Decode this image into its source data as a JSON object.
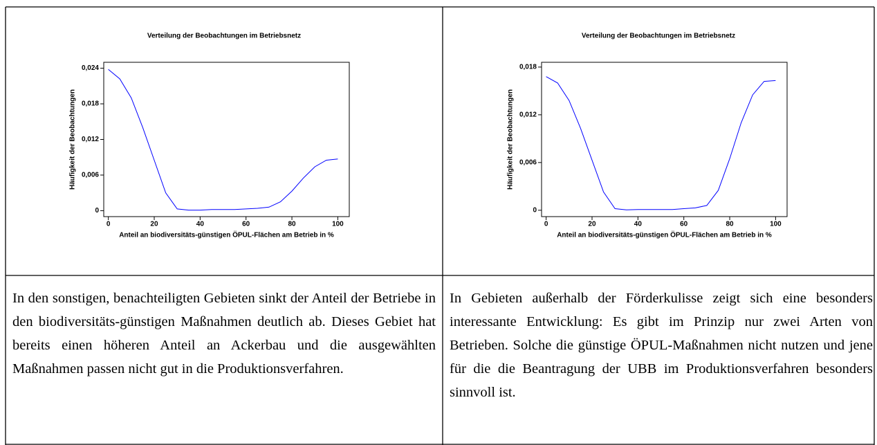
{
  "chart_data": [
    {
      "type": "line",
      "title": "Verteilung der Beobachtungen im Betriebsnetz",
      "x_label": "Anteil an biodiversitäts-günstigen ÖPUL-Flächen am Betrieb in %",
      "y_label": "Häufigkeit der Beobachtungen",
      "x": [
        0,
        5,
        10,
        15,
        20,
        25,
        30,
        35,
        40,
        45,
        50,
        55,
        60,
        65,
        70,
        75,
        80,
        85,
        90,
        95,
        100
      ],
      "series": [
        {
          "color": "#0000ff",
          "values": [
            0.0238,
            0.0222,
            0.019,
            0.014,
            0.0085,
            0.003,
            0.0003,
            0.0001,
            0.0001,
            0.0002,
            0.0002,
            0.0002,
            0.0003,
            0.0004,
            0.0006,
            0.0015,
            0.0033,
            0.0055,
            0.0074,
            0.0085,
            0.0087
          ]
        }
      ],
      "xlim": [
        -2,
        105
      ],
      "xticks": [
        0,
        20,
        40,
        60,
        80,
        100
      ],
      "ylim": [
        -0.001,
        0.025
      ],
      "yticks": [
        0,
        {
          "value": 0.006,
          "label": "0,006"
        },
        {
          "value": 0.012,
          "label": "0,012"
        },
        {
          "value": 0.018,
          "label": "0,018"
        },
        {
          "value": 0.024,
          "label": "0,024"
        }
      ]
    },
    {
      "type": "line",
      "title": "Verteilung der Beobachtungen im Betriebsnetz",
      "x_label": "Anteil an biodiversitäts-günstigen ÖPUL-Flächen am Betrieb in %",
      "y_label": "Häufigkeit der Beobachtungen",
      "x": [
        0,
        5,
        10,
        15,
        20,
        25,
        30,
        35,
        40,
        45,
        50,
        55,
        60,
        65,
        70,
        75,
        80,
        85,
        90,
        95,
        100
      ],
      "series": [
        {
          "color": "#0000ff",
          "values": [
            0.0168,
            0.016,
            0.0138,
            0.0103,
            0.0063,
            0.0023,
            0.0002,
            5e-05,
            0.0001,
            0.0001,
            0.0001,
            0.0001,
            0.0002,
            0.0003,
            0.0006,
            0.0025,
            0.0065,
            0.011,
            0.0145,
            0.0162,
            0.0163
          ]
        }
      ],
      "xlim": [
        -2,
        105
      ],
      "xticks": [
        0,
        20,
        40,
        60,
        80,
        100
      ],
      "ylim": [
        -0.0008,
        0.0186
      ],
      "yticks": [
        0,
        {
          "value": 0.006,
          "label": "0,006"
        },
        {
          "value": 0.012,
          "label": "0,012"
        },
        {
          "value": 0.018,
          "label": "0,018"
        }
      ]
    }
  ],
  "texts": [
    "In den sonstigen, benachteiligten Gebieten sinkt der Anteil der Betriebe in den biodiversitäts-günstigen Maßnahmen deutlich ab. Dieses Gebiet hat bereits einen höheren Anteil an Ackerbau und die ausgewählten Maßnahmen passen nicht gut in die Produktionsverfahren.",
    "In Gebieten außerhalb der Förderkulisse zeigt sich eine besonders interessante Entwicklung: Es gibt im Prinzip nur zwei Arten von Betrieben. Solche die günstige ÖPUL-Maßnahmen nicht nutzen und jene für die die Beantragung der UBB im Produktionsverfahren besonders sinnvoll ist."
  ]
}
